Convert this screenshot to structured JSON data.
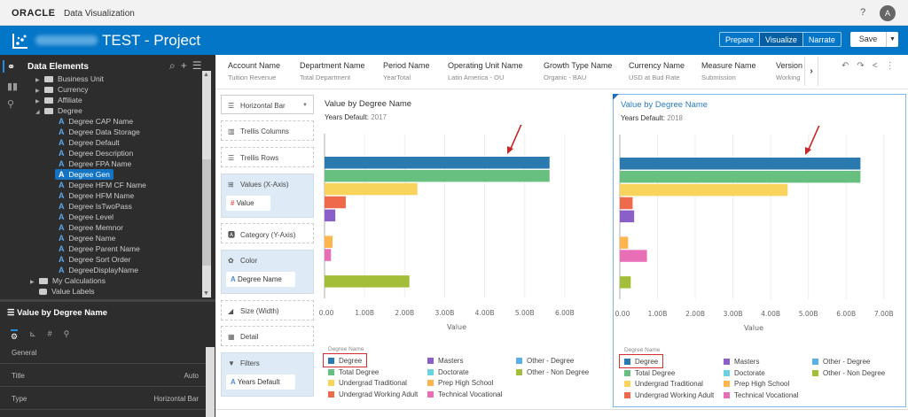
{
  "app": {
    "brand": "ORACLE",
    "product": "Data Visualization",
    "help_label": "?",
    "avatar_initial": "A"
  },
  "header": {
    "project_title": "TEST - Project",
    "modes": [
      "Prepare",
      "Visualize",
      "Narrate"
    ],
    "active_mode": "Visualize",
    "save_label": "Save"
  },
  "data_elements": {
    "title": "Data Elements",
    "tree": [
      {
        "label": "Business Unit",
        "type": "folder",
        "state": "collapsed"
      },
      {
        "label": "Currency",
        "type": "folder",
        "state": "collapsed"
      },
      {
        "label": "Affiliate",
        "type": "folder",
        "state": "collapsed"
      },
      {
        "label": "Degree",
        "type": "folder",
        "state": "expanded"
      },
      {
        "label": "Degree CAP Name",
        "type": "attribute"
      },
      {
        "label": "Degree Data Storage",
        "type": "attribute"
      },
      {
        "label": "Degree Default",
        "type": "attribute"
      },
      {
        "label": "Degree Description",
        "type": "attribute"
      },
      {
        "label": "Degree FPA Name",
        "type": "attribute"
      },
      {
        "label": "Degree Gen",
        "type": "attribute",
        "selected": true
      },
      {
        "label": "Degree HFM CF Name",
        "type": "attribute"
      },
      {
        "label": "Degree HFM Name",
        "type": "attribute"
      },
      {
        "label": "Degree IsTwoPass",
        "type": "attribute"
      },
      {
        "label": "Degree Level",
        "type": "attribute"
      },
      {
        "label": "Degree Memnor",
        "type": "attribute"
      },
      {
        "label": "Degree Name",
        "type": "attribute"
      },
      {
        "label": "Degree Parent Name",
        "type": "attribute"
      },
      {
        "label": "Degree Sort Order",
        "type": "attribute"
      },
      {
        "label": "DegreeDisplayName",
        "type": "attribute"
      },
      {
        "label": "My Calculations",
        "type": "folder",
        "state": "collapsed"
      },
      {
        "label": "Value Labels",
        "type": "tag"
      }
    ]
  },
  "properties": {
    "title": "Value by Degree Name",
    "section": "General",
    "rows": [
      {
        "key": "Title",
        "value": "Auto"
      },
      {
        "key": "Type",
        "value": "Horizontal Bar"
      }
    ]
  },
  "filters_bar": [
    {
      "name": "Account Name",
      "value": "Tuition Revenue"
    },
    {
      "name": "Department Name",
      "value": "Total Department"
    },
    {
      "name": "Period Name",
      "value": "YearTotal"
    },
    {
      "name": "Operating Unit Name",
      "value": "Latin America - OU"
    },
    {
      "name": "Growth Type Name",
      "value": "Organic - BAU"
    },
    {
      "name": "Currency Name",
      "value": "USD at Bud Rate"
    },
    {
      "name": "Measure Name",
      "value": "Submission"
    },
    {
      "name": "Version",
      "value": "Working"
    }
  ],
  "grammar": {
    "viz_type": "Horizontal Bar",
    "trellis_columns": "Trellis Columns",
    "trellis_rows": "Trellis Rows",
    "values_label": "Values (X-Axis)",
    "values_item": "Value",
    "category_label": "Category (Y-Axis)",
    "color_label": "Color",
    "color_item": "Degree Name",
    "size_label": "Size (Width)",
    "detail_label": "Detail",
    "filters_label": "Filters",
    "filters_item": "Years Default"
  },
  "legend": {
    "title": "Degree Name",
    "items": [
      {
        "label": "Degree",
        "color": "#2a7ab0"
      },
      {
        "label": "Total Degree",
        "color": "#67c07f"
      },
      {
        "label": "Undergrad Traditional",
        "color": "#f9d45c"
      },
      {
        "label": "Undergrad Working Adult",
        "color": "#ef6a4b"
      },
      {
        "label": "Masters",
        "color": "#8a5fc8"
      },
      {
        "label": "Doctorate",
        "color": "#6bd2df"
      },
      {
        "label": "Prep High School",
        "color": "#ffb54d"
      },
      {
        "label": "Technical Vocational",
        "color": "#e86fb5"
      },
      {
        "label": "Other - Degree",
        "color": "#5ab0e8"
      },
      {
        "label": "Other - Non Degree",
        "color": "#a3bf39"
      }
    ]
  },
  "chart_data": [
    {
      "type": "bar",
      "orientation": "horizontal",
      "title": "Value by Degree Name",
      "subtitle_key": "Years Default",
      "subtitle_value": "2017",
      "xlabel": "Value",
      "xlim": [
        0,
        6.6
      ],
      "ticks": [
        "0.00",
        "1.00B",
        "2.00B",
        "3.00B",
        "4.00B",
        "5.00B",
        "6.00B"
      ],
      "categories": [
        "Degree",
        "Total Degree",
        "Undergrad Traditional",
        "Undergrad Working Adult",
        "Masters",
        "Doctorate",
        "Prep High School",
        "Technical Vocational",
        "Other - Degree",
        "Other - Non Degree"
      ],
      "values_billions": [
        5.62,
        5.62,
        2.32,
        0.53,
        0.27,
        0,
        0.2,
        0.16,
        0,
        2.12
      ],
      "selected": false
    },
    {
      "type": "bar",
      "orientation": "horizontal",
      "title": "Value by Degree Name",
      "subtitle_key": "Years Default",
      "subtitle_value": "2018",
      "xlabel": "Value",
      "xlim": [
        0,
        7.1
      ],
      "ticks": [
        "0.00",
        "1.00B",
        "2.00B",
        "3.00B",
        "4.00B",
        "5.00B",
        "6.00B",
        "7.00B"
      ],
      "categories": [
        "Degree",
        "Total Degree",
        "Undergrad Traditional",
        "Undergrad Working Adult",
        "Masters",
        "Doctorate",
        "Prep High School",
        "Technical Vocational",
        "Other - Degree",
        "Other - Non Degree"
      ],
      "values_billions": [
        6.38,
        6.38,
        4.45,
        0.34,
        0.38,
        0,
        0.22,
        0.72,
        0,
        0.29
      ],
      "selected": true
    }
  ]
}
